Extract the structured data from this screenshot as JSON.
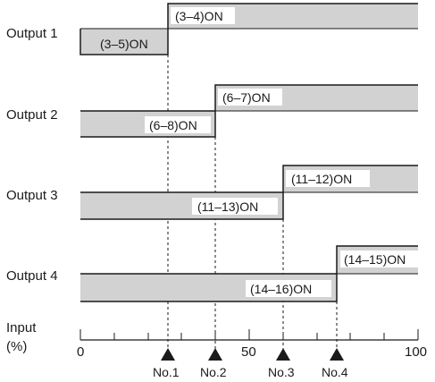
{
  "outputs": [
    {
      "label": "Output 1",
      "lower_label": "(3–5)ON",
      "upper_label": "(3–4)ON"
    },
    {
      "label": "Output 2",
      "lower_label": "(6–8)ON",
      "upper_label": "(6–7)ON"
    },
    {
      "label": "Output 3",
      "lower_label": "(11–13)ON",
      "upper_label": "(11–12)ON"
    },
    {
      "label": "Output 4",
      "lower_label": "(14–16)ON",
      "upper_label": "(14–15)ON"
    }
  ],
  "axis": {
    "title_line1": "Input",
    "title_line2": "(%)",
    "ticks": [
      "0",
      "50",
      "100"
    ]
  },
  "markers": [
    {
      "label": "No.1"
    },
    {
      "label": "No.2"
    },
    {
      "label": "No.3"
    },
    {
      "label": "No.4"
    }
  ],
  "colors": {
    "bar_fill": "#d2d2d2",
    "line": "#1a1a1a"
  }
}
